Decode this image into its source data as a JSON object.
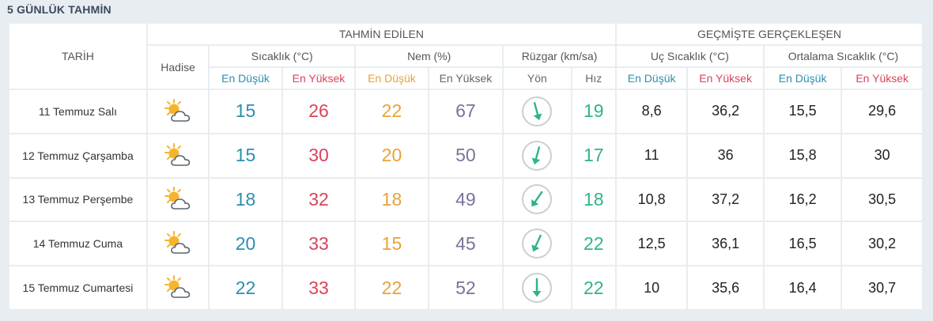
{
  "title": "5 GÜNLÜK TAHMİN",
  "headers": {
    "date": "TARİH",
    "forecast_group": "TAHMİN EDİLEN",
    "past_group": "GEÇMİŞTE GERÇEKLEŞEN",
    "event": "Hadise",
    "temperature": "Sıcaklık (°C)",
    "humidity": "Nem (%)",
    "wind": "Rüzgar (km/sa)",
    "extreme_temp": "Uç Sıcaklık (°C)",
    "avg_temp": "Ortalama Sıcaklık (°C)",
    "min": "En Düşük",
    "max": "En Yüksek",
    "direction": "Yön",
    "speed": "Hız"
  },
  "colors": {
    "min": "#2a8fb0",
    "max": "#d9435b",
    "humidity_min": "#e9a23a",
    "humidity_max": "#7a7399",
    "wind_speed": "#2fb38a",
    "arrow": "#2fb38a"
  },
  "rows": [
    {
      "date": "11 Temmuz Salı",
      "icon": "partly-cloudy-icon",
      "temp_min": "15",
      "temp_max": "26",
      "hum_min": "22",
      "hum_max": "67",
      "wind_dir_deg": 345,
      "wind_speed": "19",
      "ext_min": "8,6",
      "ext_max": "36,2",
      "avg_min": "15,5",
      "avg_max": "29,6"
    },
    {
      "date": "12 Temmuz Çarşamba",
      "icon": "partly-cloudy-icon",
      "temp_min": "15",
      "temp_max": "30",
      "hum_min": "20",
      "hum_max": "50",
      "wind_dir_deg": 15,
      "wind_speed": "17",
      "ext_min": "11",
      "ext_max": "36",
      "avg_min": "15,8",
      "avg_max": "30"
    },
    {
      "date": "13 Temmuz Perşembe",
      "icon": "partly-cloudy-icon",
      "temp_min": "18",
      "temp_max": "32",
      "hum_min": "18",
      "hum_max": "49",
      "wind_dir_deg": 35,
      "wind_speed": "18",
      "ext_min": "10,8",
      "ext_max": "37,2",
      "avg_min": "16,2",
      "avg_max": "30,5"
    },
    {
      "date": "14 Temmuz Cuma",
      "icon": "partly-cloudy-icon",
      "temp_min": "20",
      "temp_max": "33",
      "hum_min": "15",
      "hum_max": "45",
      "wind_dir_deg": 25,
      "wind_speed": "22",
      "ext_min": "12,5",
      "ext_max": "36,1",
      "avg_min": "16,5",
      "avg_max": "30,2"
    },
    {
      "date": "15 Temmuz Cumartesi",
      "icon": "partly-cloudy-icon",
      "temp_min": "22",
      "temp_max": "33",
      "hum_min": "22",
      "hum_max": "52",
      "wind_dir_deg": 0,
      "wind_speed": "22",
      "ext_min": "10",
      "ext_max": "35,6",
      "avg_min": "16,4",
      "avg_max": "30,7"
    }
  ]
}
